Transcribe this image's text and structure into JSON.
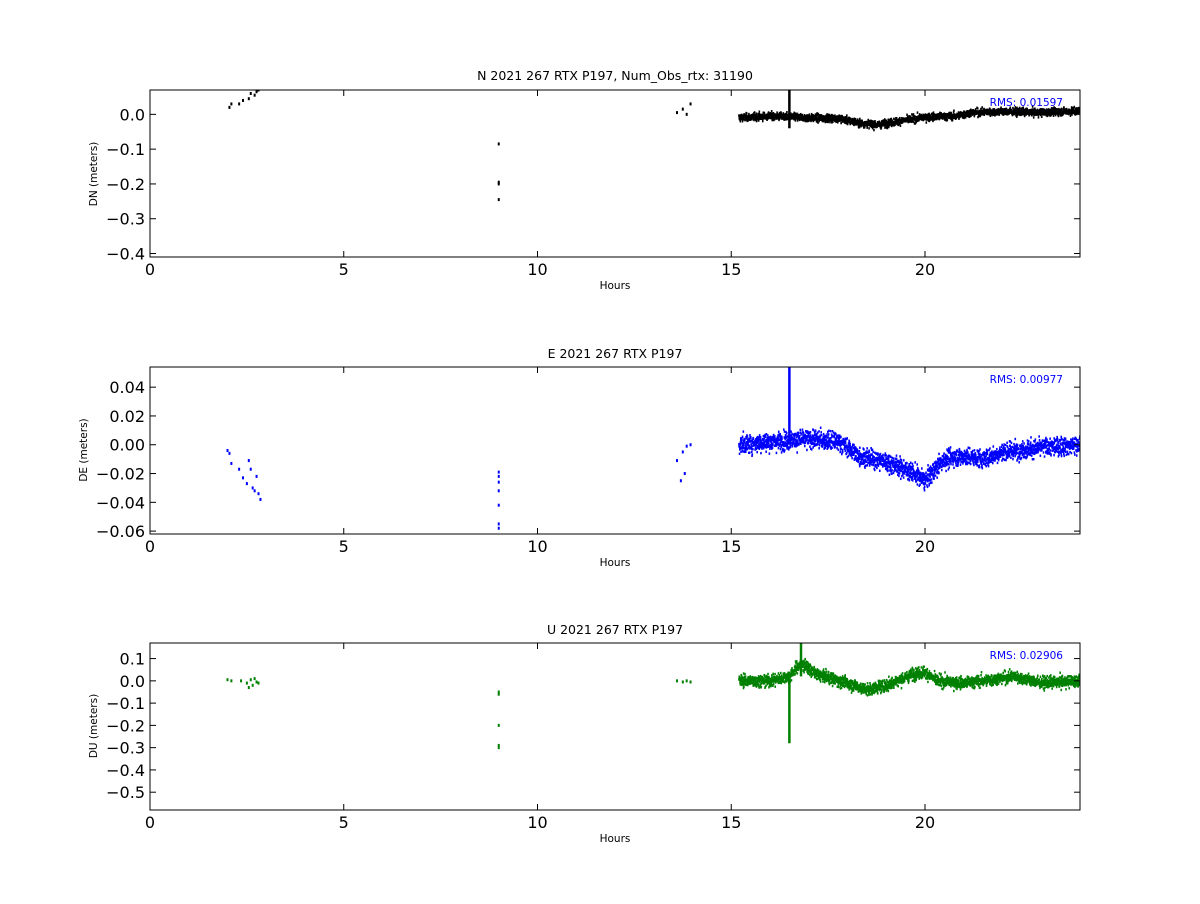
{
  "chart_data": [
    {
      "type": "scatter",
      "title": "N 2021 267 RTX  P197, Num_Obs_rtx: 31190",
      "xlabel": "Hours",
      "ylabel": "DN (meters)",
      "xlim": [
        0,
        24
      ],
      "ylim": [
        -0.41,
        0.07
      ],
      "xticks": [
        "0",
        "5",
        "10",
        "15",
        "20"
      ],
      "yticks": [
        "0.0",
        "−0.1",
        "−0.2",
        "−0.3",
        "−0.4"
      ],
      "yticks_values": [
        0.0,
        -0.1,
        -0.2,
        -0.3,
        -0.4
      ],
      "rms_label": "RMS:  0.01597",
      "color": "#000000",
      "grid": false,
      "sparse_points": [
        [
          2.05,
          0.02
        ],
        [
          2.1,
          0.03
        ],
        [
          2.3,
          0.03
        ],
        [
          2.4,
          0.04
        ],
        [
          2.55,
          0.045
        ],
        [
          2.6,
          0.06
        ],
        [
          2.7,
          0.055
        ],
        [
          2.75,
          0.065
        ],
        [
          2.8,
          0.07
        ],
        [
          9.0,
          -0.085
        ],
        [
          9.0,
          -0.195
        ],
        [
          9.0,
          -0.2
        ],
        [
          9.0,
          -0.245
        ],
        [
          13.6,
          0.005
        ],
        [
          13.75,
          0.015
        ],
        [
          13.85,
          0.0
        ],
        [
          13.95,
          0.03
        ]
      ],
      "dense_x_range": [
        15.2,
        24.0
      ],
      "dense_trend": [
        [
          15.2,
          -0.01
        ],
        [
          16.0,
          -0.005
        ],
        [
          17.0,
          -0.01
        ],
        [
          17.8,
          -0.012
        ],
        [
          18.3,
          -0.025
        ],
        [
          18.8,
          -0.03
        ],
        [
          19.3,
          -0.02
        ],
        [
          20.0,
          -0.008
        ],
        [
          20.8,
          -0.005
        ],
        [
          21.2,
          0.005
        ],
        [
          22.0,
          0.008
        ],
        [
          23.0,
          0.005
        ],
        [
          24.0,
          0.01
        ]
      ],
      "dense_spread": 0.02,
      "spikes": [
        [
          16.5,
          -0.04,
          0.07
        ]
      ]
    },
    {
      "type": "scatter",
      "title": "E 2021 267 RTX  P197",
      "xlabel": "Hours",
      "ylabel": "DE (meters)",
      "xlim": [
        0,
        24
      ],
      "ylim": [
        -0.062,
        0.054
      ],
      "xticks": [
        "0",
        "5",
        "10",
        "15",
        "20"
      ],
      "yticks": [
        "0.04",
        "0.02",
        "0.00",
        "−0.02",
        "−0.04",
        "−0.06"
      ],
      "yticks_values": [
        0.04,
        0.02,
        0.0,
        -0.02,
        -0.04,
        -0.06
      ],
      "rms_label": "RMS:  0.00977",
      "color": "#0000ff",
      "grid": false,
      "sparse_points": [
        [
          2.0,
          -0.004
        ],
        [
          2.05,
          -0.006
        ],
        [
          2.1,
          -0.013
        ],
        [
          2.3,
          -0.017
        ],
        [
          2.4,
          -0.023
        ],
        [
          2.5,
          -0.027
        ],
        [
          2.55,
          -0.011
        ],
        [
          2.6,
          -0.017
        ],
        [
          2.65,
          -0.03
        ],
        [
          2.7,
          -0.032
        ],
        [
          2.75,
          -0.022
        ],
        [
          2.8,
          -0.034
        ],
        [
          2.85,
          -0.038
        ],
        [
          9.0,
          -0.019
        ],
        [
          9.0,
          -0.022
        ],
        [
          9.0,
          -0.026
        ],
        [
          9.0,
          -0.032
        ],
        [
          9.0,
          -0.042
        ],
        [
          9.0,
          -0.055
        ],
        [
          9.0,
          -0.058
        ],
        [
          13.6,
          -0.011
        ],
        [
          13.7,
          -0.025
        ],
        [
          13.75,
          -0.005
        ],
        [
          13.8,
          -0.02
        ],
        [
          13.85,
          -0.001
        ],
        [
          13.95,
          0.0
        ]
      ],
      "dense_x_range": [
        15.2,
        24.0
      ],
      "dense_trend": [
        [
          15.2,
          0.0
        ],
        [
          16.0,
          0.002
        ],
        [
          17.0,
          0.004
        ],
        [
          17.8,
          0.002
        ],
        [
          18.3,
          -0.008
        ],
        [
          19.0,
          -0.012
        ],
        [
          19.6,
          -0.018
        ],
        [
          20.0,
          -0.025
        ],
        [
          20.5,
          -0.01
        ],
        [
          21.0,
          -0.008
        ],
        [
          21.5,
          -0.01
        ],
        [
          22.0,
          -0.005
        ],
        [
          23.0,
          -0.002
        ],
        [
          24.0,
          0.0
        ]
      ],
      "dense_spread": 0.012,
      "spikes": [
        [
          16.5,
          0.0,
          0.054
        ]
      ]
    },
    {
      "type": "scatter",
      "title": "U 2021 267 RTX  P197",
      "xlabel": "Hours",
      "ylabel": "DU (meters)",
      "xlim": [
        0,
        24
      ],
      "ylim": [
        -0.58,
        0.17
      ],
      "xticks": [
        "0",
        "5",
        "10",
        "15",
        "20"
      ],
      "yticks": [
        "0.1",
        "0.0",
        "−0.1",
        "−0.2",
        "−0.3",
        "−0.4",
        "−0.5"
      ],
      "yticks_values": [
        0.1,
        0.0,
        -0.1,
        -0.2,
        -0.3,
        -0.4,
        -0.5
      ],
      "rms_label": "RMS:  0.02906",
      "color": "#008000",
      "grid": false,
      "sparse_points": [
        [
          2.0,
          0.005
        ],
        [
          2.1,
          0.0
        ],
        [
          2.35,
          0.0
        ],
        [
          2.5,
          -0.01
        ],
        [
          2.55,
          -0.03
        ],
        [
          2.6,
          0.005
        ],
        [
          2.65,
          -0.02
        ],
        [
          2.7,
          0.01
        ],
        [
          2.75,
          -0.005
        ],
        [
          2.8,
          -0.01
        ],
        [
          9.0,
          -0.05
        ],
        [
          9.0,
          -0.06
        ],
        [
          9.0,
          -0.2
        ],
        [
          9.0,
          -0.29
        ],
        [
          9.0,
          -0.3
        ],
        [
          13.6,
          0.0
        ],
        [
          13.75,
          -0.005
        ],
        [
          13.85,
          0.0
        ],
        [
          13.95,
          -0.005
        ]
      ],
      "dense_x_range": [
        15.2,
        24.0
      ],
      "dense_trend": [
        [
          15.2,
          0.0
        ],
        [
          16.0,
          0.0
        ],
        [
          16.5,
          0.02
        ],
        [
          16.8,
          0.08
        ],
        [
          17.2,
          0.03
        ],
        [
          17.8,
          0.0
        ],
        [
          18.5,
          -0.04
        ],
        [
          19.0,
          -0.02
        ],
        [
          19.7,
          0.03
        ],
        [
          20.0,
          0.04
        ],
        [
          20.3,
          0.0
        ],
        [
          21.0,
          -0.01
        ],
        [
          21.5,
          0.0
        ],
        [
          22.3,
          0.02
        ],
        [
          23.0,
          -0.01
        ],
        [
          24.0,
          0.0
        ]
      ],
      "dense_spread": 0.05,
      "spikes": [
        [
          16.5,
          -0.28,
          0.02
        ],
        [
          16.8,
          0.02,
          0.17
        ]
      ]
    }
  ]
}
